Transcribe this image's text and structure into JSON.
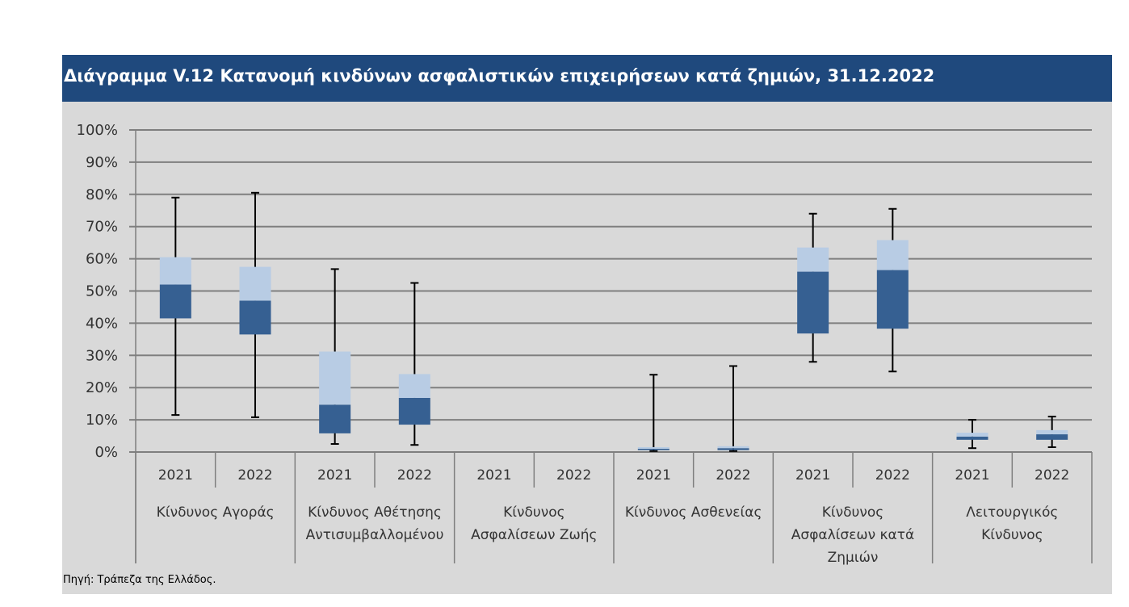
{
  "header": {
    "title": "Διάγραμμα V.12 Κατανομή κινδύνων ασφαλιστικών επιχειρήσεων κατά ζημιών, 31.12.2022"
  },
  "footer": {
    "source": "Πηγή: Τράπεζα της Ελλάδος."
  },
  "colors": {
    "header_bg": "#1f497d",
    "plot_bg": "#d9d9d9",
    "upper_box": "#b8cce4",
    "lower_box": "#366092",
    "gridline": "#7f7f7f"
  },
  "chart_data": {
    "type": "boxplot",
    "title": "Διάγραμμα V.12 Κατανομή κινδύνων ασφαλιστικών επιχειρήσεων κατά ζημιών, 31.12.2022",
    "ylim": [
      0,
      100
    ],
    "y_ticks": [
      "0%",
      "10%",
      "20%",
      "30%",
      "40%",
      "50%",
      "60%",
      "70%",
      "80%",
      "90%",
      "100%"
    ],
    "grid": true,
    "categories": [
      {
        "name_lines": [
          "Κίνδυνος Αγοράς"
        ],
        "groups": [
          {
            "year": "2021",
            "min": 11.5,
            "q1": 41.5,
            "median": 52,
            "q3": 60.5,
            "max": 79
          },
          {
            "year": "2022",
            "min": 10.8,
            "q1": 36.5,
            "median": 47,
            "q3": 57.5,
            "max": 80.5
          }
        ]
      },
      {
        "name_lines": [
          "Κίνδυνος Αθέτησης",
          "Αντισυμβαλλομένου"
        ],
        "groups": [
          {
            "year": "2021",
            "min": 2.5,
            "q1": 5.8,
            "median": 14.7,
            "q3": 31.2,
            "max": 56.8
          },
          {
            "year": "2022",
            "min": 2.2,
            "q1": 8.5,
            "median": 16.8,
            "q3": 24.2,
            "max": 52.5
          }
        ]
      },
      {
        "name_lines": [
          "Κίνδυνος",
          "Ασφαλίσεων Ζωής"
        ],
        "groups": [
          {
            "year": "2021",
            "min": null,
            "q1": null,
            "median": null,
            "q3": null,
            "max": null
          },
          {
            "year": "2022",
            "min": null,
            "q1": null,
            "median": null,
            "q3": null,
            "max": null
          }
        ]
      },
      {
        "name_lines": [
          "Κίνδυνος Ασθενείας"
        ],
        "groups": [
          {
            "year": "2021",
            "min": 0.3,
            "q1": 0.6,
            "median": 1.0,
            "q3": 1.5,
            "max": 24
          },
          {
            "year": "2022",
            "min": 0.3,
            "q1": 0.6,
            "median": 1.2,
            "q3": 1.8,
            "max": 26.7
          }
        ]
      },
      {
        "name_lines": [
          "Κίνδυνος",
          "Ασφαλίσεων κατά",
          "Ζημιών"
        ],
        "groups": [
          {
            "year": "2021",
            "min": 28,
            "q1": 36.8,
            "median": 56,
            "q3": 63.5,
            "max": 74
          },
          {
            "year": "2022",
            "min": 25,
            "q1": 38.3,
            "median": 56.5,
            "q3": 65.8,
            "max": 75.5
          }
        ]
      },
      {
        "name_lines": [
          "Λειτουργικός",
          "Κίνδυνος"
        ],
        "groups": [
          {
            "year": "2021",
            "min": 1.2,
            "q1": 3.8,
            "median": 4.8,
            "q3": 6.0,
            "max": 10
          },
          {
            "year": "2022",
            "min": 1.5,
            "q1": 3.8,
            "median": 5.5,
            "q3": 6.8,
            "max": 11
          }
        ]
      }
    ]
  }
}
